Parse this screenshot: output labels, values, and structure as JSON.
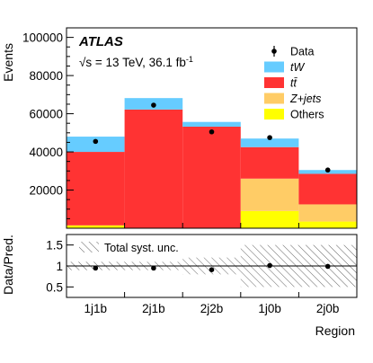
{
  "chart_data": [
    {
      "type": "bar",
      "stacked": true,
      "categories": [
        "1j1b",
        "2j1b",
        "2j2b",
        "1j0b",
        "2j0b"
      ],
      "ylabel": "Events",
      "ylim": [
        0,
        105000
      ],
      "yticks": [
        20000,
        40000,
        60000,
        80000,
        100000
      ],
      "series": [
        {
          "name": "Others",
          "color": "#ffff00",
          "values": [
            1500,
            200,
            200,
            9000,
            3500
          ]
        },
        {
          "name": "Z+jets",
          "color": "#ffcc66",
          "values": [
            0,
            0,
            0,
            17000,
            9000
          ]
        },
        {
          "name": "tt̄",
          "color": "#ff3333",
          "values": [
            38500,
            62000,
            53000,
            16500,
            16000
          ]
        },
        {
          "name": "tW",
          "color": "#66ccff",
          "values": [
            8000,
            6000,
            2500,
            4500,
            2000
          ]
        }
      ],
      "data_points": {
        "name": "Data",
        "values": [
          45500,
          64500,
          50500,
          47500,
          30500
        ]
      },
      "legend": {
        "placement": "top-right",
        "entries": [
          "Data",
          "tW",
          "tt̄",
          "Z+jets",
          "Others"
        ]
      },
      "annotations": {
        "experiment": "ATLAS",
        "energy": "√s = 13 TeV, 36.1 fb",
        "lumi_exponent": "-1"
      }
    },
    {
      "type": "scatter",
      "categories": [
        "1j1b",
        "2j1b",
        "2j2b",
        "1j0b",
        "2j0b"
      ],
      "xlabel": "Region",
      "ylabel": "Data/Pred.",
      "ylim": [
        0.25,
        1.75
      ],
      "yticks": [
        0.5,
        1,
        1.5
      ],
      "ytick_labels": [
        "0.5",
        "1",
        "1.5"
      ],
      "values": [
        0.95,
        0.95,
        0.91,
        1.01,
        0.99
      ],
      "uncertainty": {
        "name": "Total syst. unc.",
        "upper": [
          1.1,
          1.1,
          1.2,
          1.5,
          1.5
        ],
        "lower": [
          0.9,
          0.9,
          0.8,
          0.5,
          0.5
        ]
      },
      "reference_line": 1
    }
  ]
}
